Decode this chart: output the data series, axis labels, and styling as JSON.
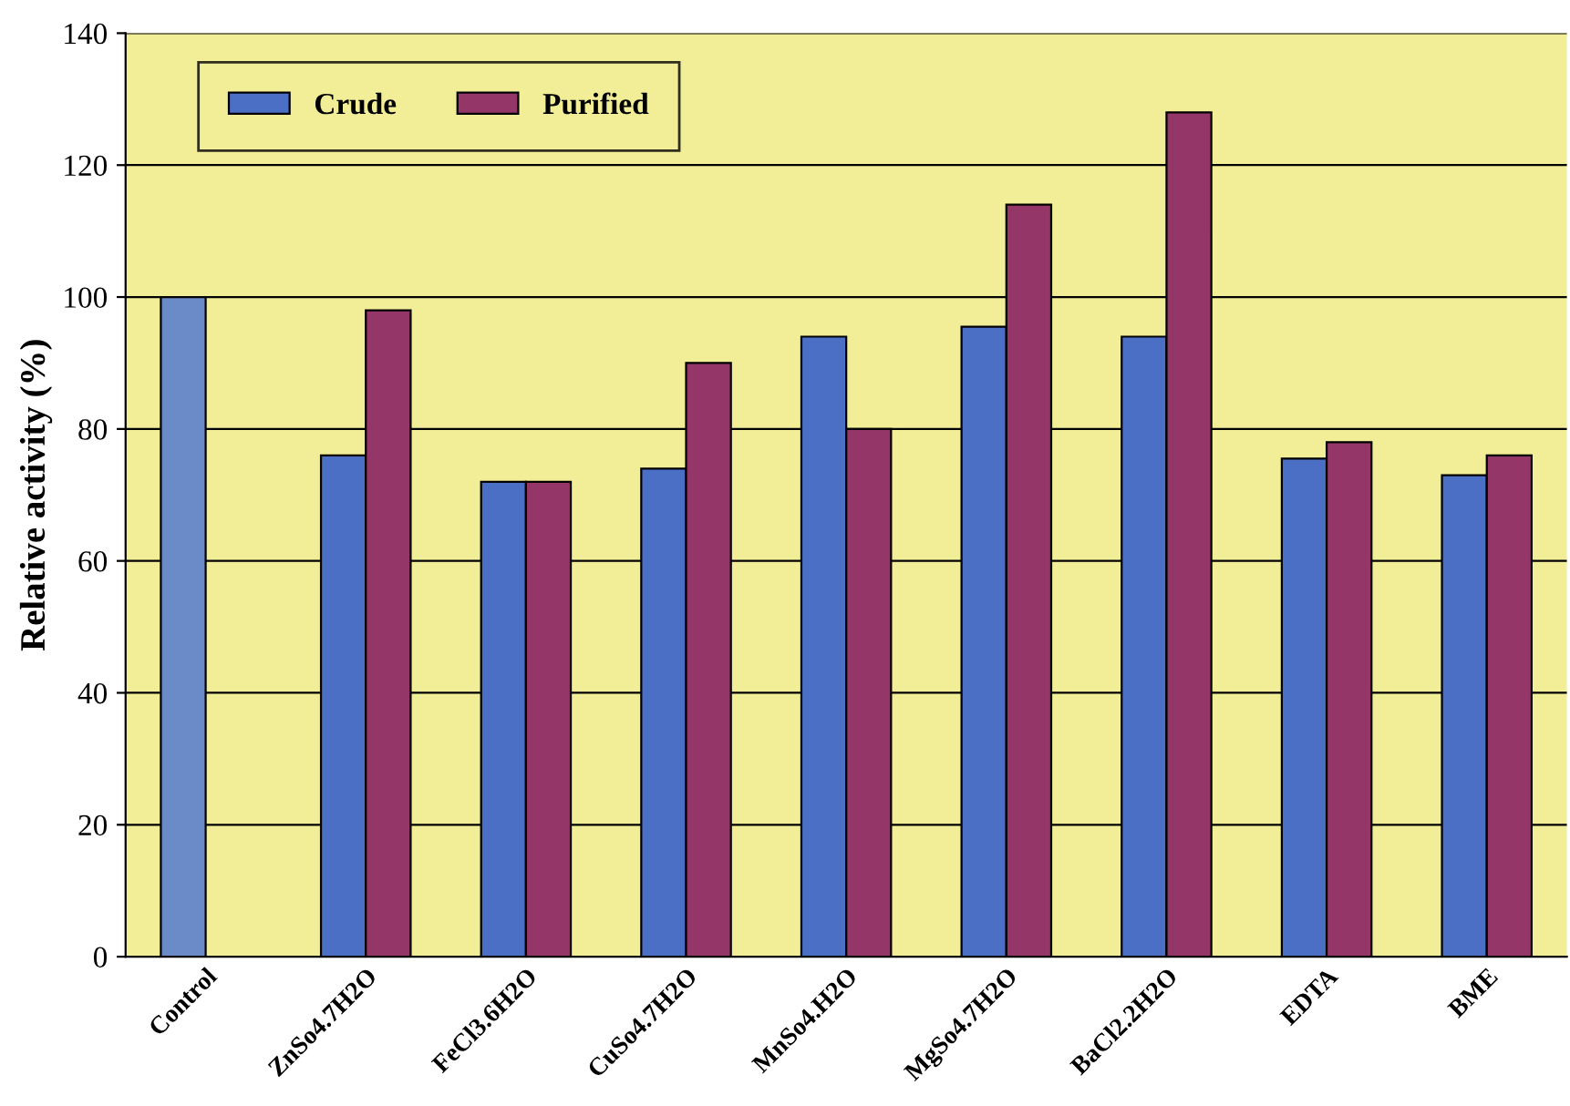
{
  "chart_data": {
    "type": "bar",
    "ylabel": "Relative activity (%)",
    "categories": [
      "Control",
      "ZnSo4.7H2O",
      "FeCl3.6H2O",
      "CuSo4.7H2O",
      "MnSo4.H2O",
      "MgSo4.7H2O",
      "BaCl2.2H2O",
      "EDTA",
      "BME"
    ],
    "series": [
      {
        "name": "Crude",
        "color": "#4a6fc4",
        "colors": [
          "#6b8ac8",
          "#4a6fc4",
          "#4a6fc4",
          "#4a6fc4",
          "#4a6fc4",
          "#4a6fc4",
          "#4a6fc4",
          "#4a6fc4",
          "#4a6fc4"
        ],
        "values": [
          100,
          76,
          72,
          74,
          94,
          95.5,
          94,
          75.5,
          73
        ]
      },
      {
        "name": "Purified",
        "color": "#943668",
        "values": [
          null,
          98,
          72,
          90,
          80,
          114,
          128,
          78,
          76
        ]
      }
    ],
    "ylim": [
      0,
      140
    ],
    "yticks": [
      0,
      20,
      40,
      60,
      80,
      100,
      120,
      140
    ],
    "grid": "y",
    "legend": "top left"
  }
}
